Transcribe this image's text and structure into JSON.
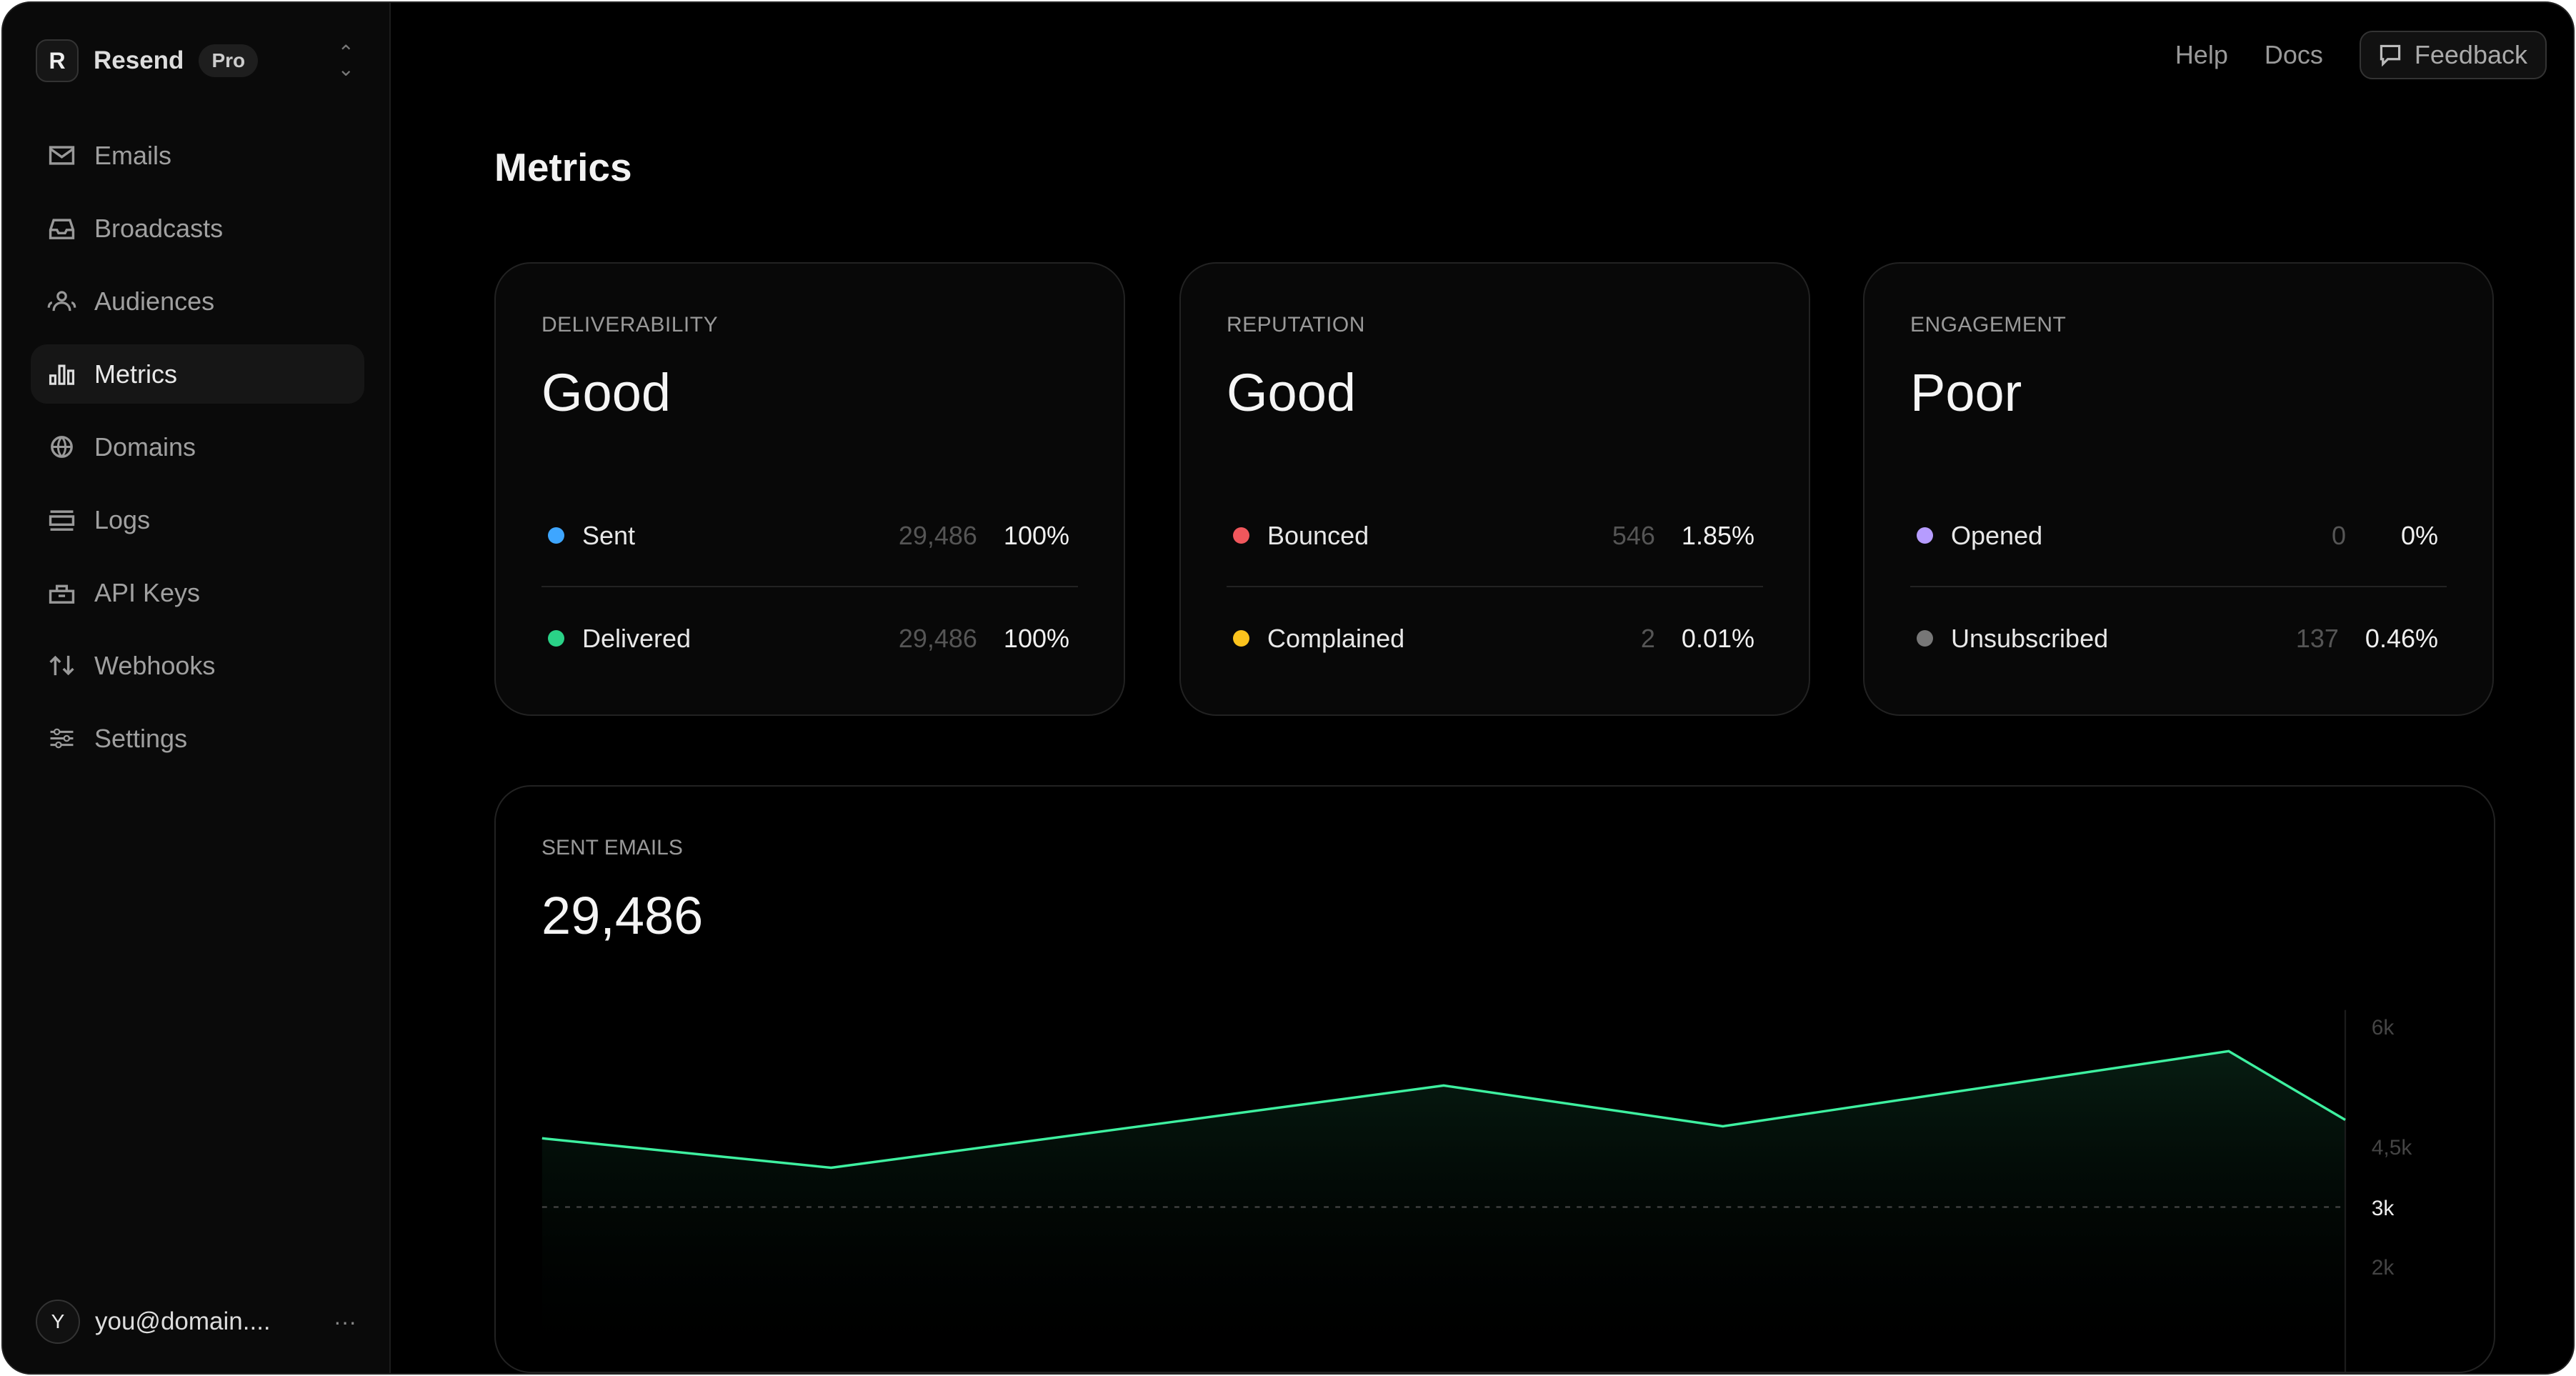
{
  "sidebar": {
    "brand": "Resend",
    "plan": "Pro",
    "items": [
      {
        "label": "Emails",
        "icon": "mail-icon"
      },
      {
        "label": "Broadcasts",
        "icon": "inbox-icon"
      },
      {
        "label": "Audiences",
        "icon": "users-icon"
      },
      {
        "label": "Metrics",
        "icon": "bar-chart-icon",
        "active": true
      },
      {
        "label": "Domains",
        "icon": "globe-icon"
      },
      {
        "label": "Logs",
        "icon": "logs-icon"
      },
      {
        "label": "API Keys",
        "icon": "lock-icon"
      },
      {
        "label": "Webhooks",
        "icon": "arrows-icon"
      },
      {
        "label": "Settings",
        "icon": "sliders-icon"
      }
    ],
    "user": {
      "initial": "Y",
      "email": "you@domain....",
      "more": "···"
    }
  },
  "header": {
    "help": "Help",
    "docs": "Docs",
    "feedback": "Feedback"
  },
  "page": {
    "title": "Metrics"
  },
  "cards": [
    {
      "label": "DELIVERABILITY",
      "value": "Good",
      "rows": [
        {
          "name": "Sent",
          "count": "29,486",
          "pct": "100%",
          "color": "#3ea6ff"
        },
        {
          "name": "Delivered",
          "count": "29,486",
          "pct": "100%",
          "color": "#2ad287"
        }
      ]
    },
    {
      "label": "REPUTATION",
      "value": "Good",
      "rows": [
        {
          "name": "Bounced",
          "count": "546",
          "pct": "1.85%",
          "color": "#f0575c"
        },
        {
          "name": "Complained",
          "count": "2",
          "pct": "0.01%",
          "color": "#fbc31d"
        }
      ]
    },
    {
      "label": "ENGAGEMENT",
      "value": "Poor",
      "rows": [
        {
          "name": "Opened",
          "count": "0",
          "pct": "0%",
          "color": "#b69cff"
        },
        {
          "name": "Unsubscribed",
          "count": "137",
          "pct": "0.46%",
          "color": "#777777"
        }
      ]
    }
  ],
  "sent": {
    "label": "SENT EMAILS",
    "value": "29,486"
  },
  "chart_data": {
    "type": "area",
    "values": [
      4600,
      3970,
      5260,
      4750,
      5690,
      4830
    ],
    "y_ticks": [
      "6k",
      "4,5k",
      "3k",
      "2k"
    ],
    "y_tick_values": [
      6000,
      4500,
      3000,
      2000
    ],
    "highlight_tick": "3k",
    "reference_line": 3000,
    "line_color": "#3ef0a0",
    "grid": false
  }
}
